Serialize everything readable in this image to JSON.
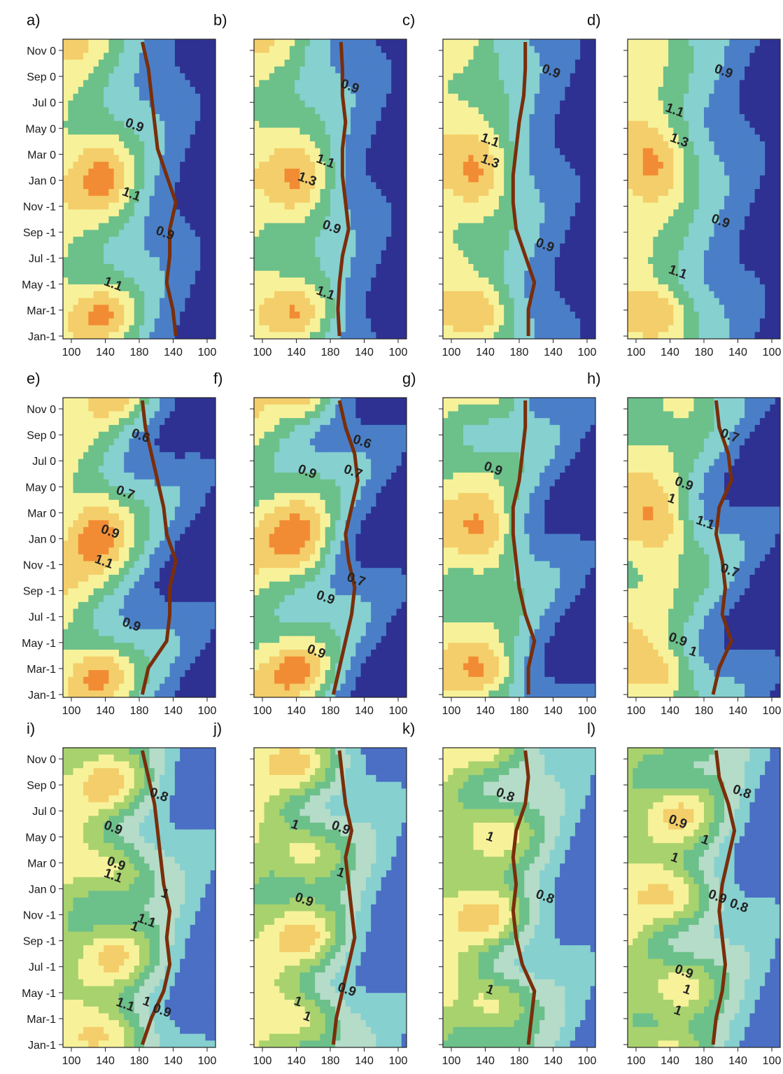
{
  "chart_data": {
    "type": "heatmap",
    "ylabels": [
      "Nov 0",
      "Sep 0",
      "Jul 0",
      "May 0",
      "Mar 0",
      "Jan 0",
      "Nov -1",
      "Sep -1",
      "Jul -1",
      "May -1",
      "Mar-1",
      "Jan-1"
    ],
    "xticks_a": [
      "100",
      "140",
      "180",
      "140",
      "100"
    ],
    "xticks_b": [
      "100",
      "140",
      "180",
      "140",
      "100"
    ],
    "palette_warm": [
      "#2e3192",
      "#4a7fc8",
      "#86d0d0",
      "#6cc08a",
      "#f7f29a",
      "#f4ce6a",
      "#f28c34",
      "#e8402a"
    ],
    "palette_low": [
      "#4a6fc4",
      "#86d0d0",
      "#b5dcc8",
      "#6cc08a",
      "#a8d26e",
      "#f7f29a",
      "#f4ce6a",
      "#f28c34",
      "#e8402a"
    ],
    "line_color": "#7a2e0a",
    "panels": [
      {
        "title": "a)",
        "xr": [
          0.52,
          0.56,
          0.58,
          0.6,
          0.62,
          0.68,
          0.74,
          0.7,
          0.7,
          0.68,
          0.72,
          0.74
        ],
        "labels": [
          {
            "t": "0.9",
            "x": 0.46,
            "y": 0.3
          },
          {
            "t": "1.1",
            "x": 0.44,
            "y": 0.53
          },
          {
            "t": "0.9",
            "x": 0.66,
            "y": 0.66
          },
          {
            "t": "1.1",
            "x": 0.32,
            "y": 0.83
          }
        ]
      },
      {
        "title": "b)",
        "xr": [
          0.57,
          0.58,
          0.58,
          0.6,
          0.58,
          0.58,
          0.6,
          0.62,
          0.58,
          0.56,
          0.55,
          0.56
        ],
        "labels": [
          {
            "t": "0.9",
            "x": 0.62,
            "y": 0.17
          },
          {
            "t": "1.1",
            "x": 0.46,
            "y": 0.42
          },
          {
            "t": "1.3",
            "x": 0.34,
            "y": 0.48
          },
          {
            "t": "0.9",
            "x": 0.5,
            "y": 0.64
          },
          {
            "t": "1.1",
            "x": 0.46,
            "y": 0.86
          }
        ]
      },
      {
        "title": "c)",
        "xr": [
          0.54,
          0.54,
          0.53,
          0.5,
          0.48,
          0.46,
          0.46,
          0.48,
          0.54,
          0.6,
          0.56,
          0.56
        ],
        "labels": [
          {
            "t": "0.9",
            "x": 0.7,
            "y": 0.12
          },
          {
            "t": "1.1",
            "x": 0.3,
            "y": 0.35
          },
          {
            "t": "1.3",
            "x": 0.3,
            "y": 0.42
          },
          {
            "t": "0.9",
            "x": 0.66,
            "y": 0.7
          }
        ]
      },
      {
        "title": "d)",
        "xr": [],
        "labels": [
          {
            "t": "0.9",
            "x": 0.62,
            "y": 0.12
          },
          {
            "t": "1.1",
            "x": 0.3,
            "y": 0.25
          },
          {
            "t": "1.3",
            "x": 0.33,
            "y": 0.35
          },
          {
            "t": "0.9",
            "x": 0.6,
            "y": 0.62
          },
          {
            "t": "1.1",
            "x": 0.32,
            "y": 0.79
          }
        ]
      },
      {
        "title": "e)",
        "xr": [
          0.52,
          0.54,
          0.58,
          0.62,
          0.66,
          0.68,
          0.74,
          0.7,
          0.7,
          0.68,
          0.56,
          0.52
        ],
        "labels": [
          {
            "t": "0.6",
            "x": 0.5,
            "y": 0.14
          },
          {
            "t": "0.7",
            "x": 0.4,
            "y": 0.33
          },
          {
            "t": "0.9",
            "x": 0.3,
            "y": 0.46
          },
          {
            "t": "1.1",
            "x": 0.26,
            "y": 0.56
          },
          {
            "t": "0.9",
            "x": 0.44,
            "y": 0.77
          }
        ]
      },
      {
        "title": "f)",
        "xr": [
          0.56,
          0.6,
          0.66,
          0.68,
          0.64,
          0.6,
          0.62,
          0.66,
          0.64,
          0.6,
          0.56,
          0.52
        ],
        "labels": [
          {
            "t": "0.6",
            "x": 0.7,
            "y": 0.16
          },
          {
            "t": "0.7",
            "x": 0.64,
            "y": 0.26
          },
          {
            "t": "0.9",
            "x": 0.34,
            "y": 0.26
          },
          {
            "t": "0.9",
            "x": 0.46,
            "y": 0.68
          },
          {
            "t": "0.7",
            "x": 0.66,
            "y": 0.62
          },
          {
            "t": "0.9",
            "x": 0.4,
            "y": 0.86
          }
        ]
      },
      {
        "title": "g)",
        "xr": [
          0.54,
          0.54,
          0.52,
          0.5,
          0.46,
          0.46,
          0.48,
          0.5,
          0.54,
          0.6,
          0.56,
          0.56
        ],
        "labels": [
          {
            "t": "0.9",
            "x": 0.32,
            "y": 0.25
          }
        ]
      },
      {
        "title": "h)",
        "xr": [
          0.58,
          0.6,
          0.66,
          0.68,
          0.6,
          0.58,
          0.62,
          0.64,
          0.62,
          0.68,
          0.6,
          0.56
        ],
        "labels": [
          {
            "t": "0.7",
            "x": 0.66,
            "y": 0.14
          },
          {
            "t": "0.9",
            "x": 0.36,
            "y": 0.3
          },
          {
            "t": "1",
            "x": 0.28,
            "y": 0.35
          },
          {
            "t": "1.1",
            "x": 0.5,
            "y": 0.43
          },
          {
            "t": "0.7",
            "x": 0.66,
            "y": 0.59
          },
          {
            "t": "0.9",
            "x": 0.32,
            "y": 0.82
          },
          {
            "t": "1",
            "x": 0.42,
            "y": 0.86
          }
        ]
      },
      {
        "title": "i)",
        "xr": [
          0.52,
          0.56,
          0.6,
          0.62,
          0.64,
          0.66,
          0.7,
          0.68,
          0.7,
          0.66,
          0.58,
          0.52
        ],
        "labels": [
          {
            "t": "0.8",
            "x": 0.62,
            "y": 0.17
          },
          {
            "t": "0.9",
            "x": 0.32,
            "y": 0.28
          },
          {
            "t": "0.9",
            "x": 0.34,
            "y": 0.4
          },
          {
            "t": "1.1",
            "x": 0.32,
            "y": 0.44
          },
          {
            "t": "1",
            "x": 0.66,
            "y": 0.5
          },
          {
            "t": "1.1",
            "x": 0.54,
            "y": 0.59
          },
          {
            "t": "1",
            "x": 0.46,
            "y": 0.61
          },
          {
            "t": "1.1",
            "x": 0.4,
            "y": 0.87
          },
          {
            "t": "1",
            "x": 0.54,
            "y": 0.86
          },
          {
            "t": "0.9",
            "x": 0.64,
            "y": 0.89
          }
        ]
      },
      {
        "title": "j)",
        "xr": [
          0.56,
          0.58,
          0.6,
          0.64,
          0.6,
          0.62,
          0.64,
          0.66,
          0.62,
          0.58,
          0.54,
          0.52
        ],
        "labels": [
          {
            "t": "1",
            "x": 0.26,
            "y": 0.27
          },
          {
            "t": "0.9",
            "x": 0.56,
            "y": 0.28
          },
          {
            "t": "1",
            "x": 0.56,
            "y": 0.43
          },
          {
            "t": "0.9",
            "x": 0.32,
            "y": 0.52
          },
          {
            "t": "0.9",
            "x": 0.6,
            "y": 0.82
          },
          {
            "t": "1",
            "x": 0.28,
            "y": 0.86
          },
          {
            "t": "1",
            "x": 0.34,
            "y": 0.91
          }
        ]
      },
      {
        "title": "k)",
        "xr": [
          0.54,
          0.56,
          0.54,
          0.48,
          0.46,
          0.48,
          0.46,
          0.48,
          0.52,
          0.6,
          0.58,
          0.56
        ],
        "labels": [
          {
            "t": "0.8",
            "x": 0.4,
            "y": 0.17
          },
          {
            "t": "1",
            "x": 0.3,
            "y": 0.31
          },
          {
            "t": "0.8",
            "x": 0.66,
            "y": 0.51
          },
          {
            "t": "1",
            "x": 0.3,
            "y": 0.82
          }
        ]
      },
      {
        "title": "l)",
        "xr": [
          0.58,
          0.6,
          0.66,
          0.7,
          0.66,
          0.62,
          0.6,
          0.62,
          0.64,
          0.62,
          0.58,
          0.56
        ],
        "labels": [
          {
            "t": "0.8",
            "x": 0.74,
            "y": 0.16
          },
          {
            "t": "0.9",
            "x": 0.32,
            "y": 0.26
          },
          {
            "t": "1",
            "x": 0.5,
            "y": 0.32
          },
          {
            "t": "1",
            "x": 0.3,
            "y": 0.38
          },
          {
            "t": "0.9",
            "x": 0.58,
            "y": 0.51
          },
          {
            "t": "0.8",
            "x": 0.72,
            "y": 0.54
          },
          {
            "t": "0.9",
            "x": 0.36,
            "y": 0.76
          },
          {
            "t": "1",
            "x": 0.38,
            "y": 0.82
          },
          {
            "t": "1",
            "x": 0.32,
            "y": 0.89
          }
        ]
      }
    ]
  }
}
